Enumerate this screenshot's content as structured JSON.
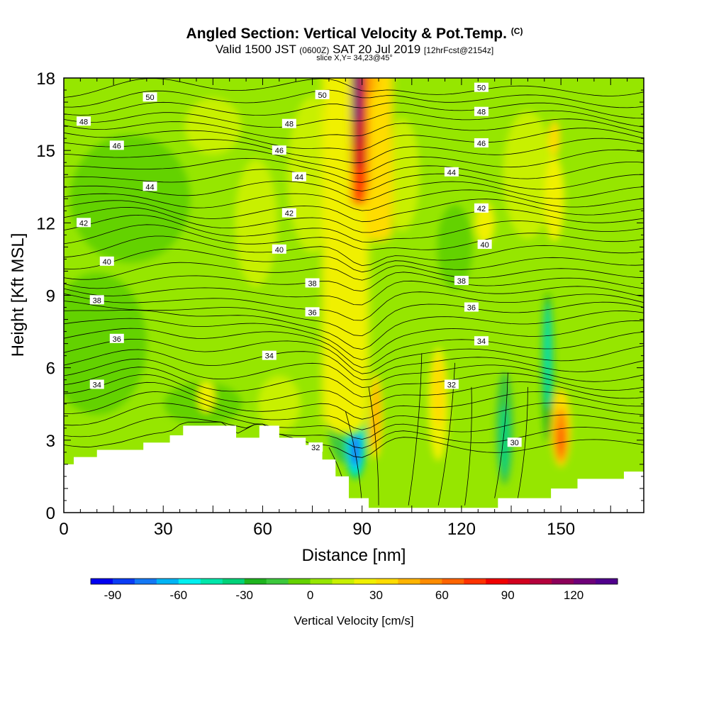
{
  "header": {
    "title": "Angled Section: Vertical Velocity & Pot.Temp.",
    "title_unit": "(C)",
    "valid_prefix": "Valid 1500 JST",
    "valid_utc": "(0600Z)",
    "valid_date": "SAT 20 Jul 2019",
    "forecast_info": "[12hrFcst@2154z]",
    "slice_info": "slice X,Y= 34,23@45°"
  },
  "chart_data": {
    "type": "contour",
    "xlabel": "Distance [nm]",
    "ylabel": "Height [Kft MSL]",
    "xlim": [
      0,
      175
    ],
    "ylim": [
      0,
      18
    ],
    "x_ticks": [
      0,
      30,
      60,
      90,
      120,
      150
    ],
    "y_ticks": [
      0,
      3,
      6,
      9,
      12,
      15,
      18
    ],
    "fill_variable": "Vertical Velocity",
    "contour_variable": "Potential Temperature (C)",
    "colorbar": {
      "label": "Vertical Velocity [cm/s]",
      "min": -100,
      "max": 140,
      "step": 10,
      "ticks": [
        -90,
        -60,
        -30,
        0,
        30,
        60,
        90,
        120
      ],
      "colors": [
        "#0000f0",
        "#0a3cf5",
        "#1478f5",
        "#00b4f5",
        "#00f0f0",
        "#00e6aa",
        "#00d278",
        "#1eb41e",
        "#3cc83c",
        "#64d200",
        "#96e600",
        "#c8f000",
        "#f0f000",
        "#ffdc00",
        "#ffb400",
        "#ff8c00",
        "#ff6400",
        "#ff3200",
        "#f00000",
        "#d2001e",
        "#b4003c",
        "#8c005a",
        "#6e0078",
        "#50008c"
      ]
    },
    "theta_contours": [
      {
        "value": 50,
        "height": 17.2
      },
      {
        "value": 48,
        "height": 16.3
      },
      {
        "value": 46,
        "height": 15.3
      },
      {
        "value": 44,
        "height": 14.1
      },
      {
        "value": 42,
        "height": 12.5
      },
      {
        "value": 40,
        "height": 10.9
      },
      {
        "value": 38,
        "height": 9.2
      },
      {
        "value": 36,
        "height": 7.7
      },
      {
        "value": 34,
        "height": 6.0
      },
      {
        "value": 32,
        "height": 4.0
      },
      {
        "value": 30,
        "height": 2.7
      }
    ],
    "contour_labels": [
      {
        "text": "50",
        "x": 26,
        "y": 17.2
      },
      {
        "text": "50",
        "x": 78,
        "y": 17.3
      },
      {
        "text": "50",
        "x": 126,
        "y": 17.6
      },
      {
        "text": "48",
        "x": 6,
        "y": 16.2
      },
      {
        "text": "48",
        "x": 68,
        "y": 16.1
      },
      {
        "text": "48",
        "x": 126,
        "y": 16.6
      },
      {
        "text": "46",
        "x": 16,
        "y": 15.2
      },
      {
        "text": "46",
        "x": 65,
        "y": 15.0
      },
      {
        "text": "46",
        "x": 126,
        "y": 15.3
      },
      {
        "text": "44",
        "x": 26,
        "y": 13.5
      },
      {
        "text": "44",
        "x": 71,
        "y": 13.9
      },
      {
        "text": "44",
        "x": 117,
        "y": 14.1
      },
      {
        "text": "42",
        "x": 6,
        "y": 12.0
      },
      {
        "text": "42",
        "x": 68,
        "y": 12.4
      },
      {
        "text": "42",
        "x": 126,
        "y": 12.6
      },
      {
        "text": "40",
        "x": 13,
        "y": 10.4
      },
      {
        "text": "40",
        "x": 65,
        "y": 10.9
      },
      {
        "text": "40",
        "x": 127,
        "y": 11.1
      },
      {
        "text": "38",
        "x": 10,
        "y": 8.8
      },
      {
        "text": "38",
        "x": 75,
        "y": 9.5
      },
      {
        "text": "38",
        "x": 120,
        "y": 9.6
      },
      {
        "text": "36",
        "x": 16,
        "y": 7.2
      },
      {
        "text": "36",
        "x": 75,
        "y": 8.3
      },
      {
        "text": "36",
        "x": 123,
        "y": 8.5
      },
      {
        "text": "34",
        "x": 10,
        "y": 5.3
      },
      {
        "text": "34",
        "x": 62,
        "y": 6.5
      },
      {
        "text": "34",
        "x": 126,
        "y": 7.1
      },
      {
        "text": "32",
        "x": 76,
        "y": 2.7
      },
      {
        "text": "32",
        "x": 117,
        "y": 5.3
      },
      {
        "text": "30",
        "x": 136,
        "y": 2.9
      }
    ],
    "updrafts": [
      {
        "x": 88,
        "top": 18.0,
        "peak_cm_s": 135
      },
      {
        "x": 113,
        "top": 7.3,
        "peak_cm_s": 35
      },
      {
        "x": 150,
        "top": 6.2,
        "peak_cm_s": 65
      }
    ],
    "downdrafts": [
      {
        "x": 88,
        "top": 5.6,
        "peak_cm_s": -80
      },
      {
        "x": 133,
        "top": 6.0,
        "peak_cm_s": -40
      },
      {
        "x": 146,
        "top": 9.0,
        "peak_cm_s": -45
      }
    ],
    "terrain_kft": [
      [
        0,
        2.0
      ],
      [
        3,
        2.3
      ],
      [
        10,
        2.6
      ],
      [
        24,
        2.9
      ],
      [
        32,
        3.2
      ],
      [
        36,
        3.6
      ],
      [
        48,
        3.6
      ],
      [
        52,
        3.1
      ],
      [
        59,
        3.6
      ],
      [
        65,
        3.1
      ],
      [
        73,
        2.8
      ],
      [
        78,
        2.2
      ],
      [
        82,
        1.5
      ],
      [
        86,
        0.6
      ],
      [
        92,
        0.2
      ],
      [
        129,
        0.2
      ],
      [
        131,
        0.6
      ],
      [
        143,
        0.6
      ],
      [
        147,
        1.0
      ],
      [
        155,
        1.4
      ],
      [
        169,
        1.7
      ],
      [
        175,
        1.7
      ]
    ]
  }
}
